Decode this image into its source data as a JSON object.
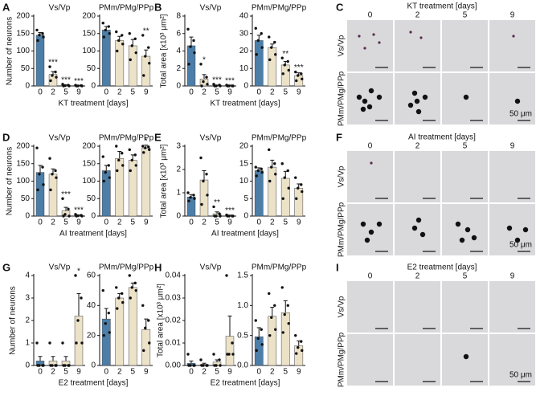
{
  "panel_labels": [
    "A",
    "B",
    "C",
    "D",
    "E",
    "F",
    "G",
    "H",
    "I"
  ],
  "image_panels": [
    {
      "title": "KT treatment [days]",
      "columns": [
        "0",
        "2",
        "5",
        "9"
      ],
      "rows": [
        "Vs/Vp",
        "PMm/PMg/PPp"
      ],
      "scale_bar": "50 μm"
    },
    {
      "title": "AI treatment [days]",
      "columns": [
        "0",
        "2",
        "5",
        "9"
      ],
      "rows": [
        "Vs/Vp",
        "PMm/PMg/PPp"
      ],
      "scale_bar": "50 μm"
    },
    {
      "title": "E2 treatment [days]",
      "columns": [
        "0",
        "2",
        "5",
        "9"
      ],
      "rows": [
        "Vs/Vp",
        "PMm/PMg/PPp"
      ],
      "scale_bar": "50 μm"
    }
  ],
  "chart_data": [
    {
      "type": "bar",
      "title": "Vs/Vp",
      "ylabel": "Number of neurons",
      "xlabel": "KT treatment [days]",
      "categories": [
        "0",
        "2",
        "5",
        "9"
      ],
      "values": [
        145,
        33,
        2,
        1
      ],
      "errors": [
        8,
        8,
        1,
        1
      ],
      "annotations": [
        null,
        "***",
        "***",
        "***"
      ],
      "points": [
        [
          160,
          150,
          146,
          140,
          130
        ],
        [
          55,
          40,
          30,
          25,
          15
        ],
        [
          5,
          2,
          1,
          0,
          0
        ],
        [
          2,
          1,
          0,
          0,
          0
        ]
      ],
      "colors": [
        "#4b7ea9",
        "#ece2c8",
        "#ece2c8",
        "#ece2c8"
      ],
      "ylim": [
        0,
        200
      ],
      "yticks": [
        0,
        50,
        100,
        150,
        200
      ]
    },
    {
      "type": "bar",
      "title": "PMm/PMg/PPp",
      "categories": [
        "0",
        "2",
        "5",
        "9"
      ],
      "values": [
        160,
        130,
        115,
        85
      ],
      "errors": [
        10,
        12,
        18,
        18
      ],
      "annotations": [
        null,
        null,
        null,
        "**"
      ],
      "points": [
        [
          180,
          170,
          160,
          150,
          140
        ],
        [
          155,
          145,
          130,
          120,
          100
        ],
        [
          150,
          135,
          115,
          95,
          75
        ],
        [
          145,
          110,
          85,
          65,
          30
        ]
      ],
      "colors": [
        "#4b7ea9",
        "#ece2c8",
        "#ece2c8",
        "#ece2c8"
      ],
      "ylim": [
        0,
        200
      ],
      "yticks": [
        0,
        50,
        100,
        150,
        200
      ]
    },
    {
      "type": "bar",
      "title": "Vs/Vp",
      "ylabel": "Total area [x10³ μm²]",
      "xlabel": "KT treatment [days]",
      "categories": [
        "0",
        "2",
        "5",
        "9"
      ],
      "values": [
        4.6,
        0.8,
        0.05,
        0.05
      ],
      "errors": [
        1,
        0.5,
        0.05,
        0.05
      ],
      "annotations": [
        null,
        "*",
        "***",
        "***"
      ],
      "points": [
        [
          6.5,
          5.2,
          4.5,
          3.8,
          2.5
        ],
        [
          2.5,
          1,
          0.5,
          0.2,
          0
        ],
        [
          0.2,
          0.1,
          0,
          0,
          0
        ],
        [
          0.1,
          0,
          0,
          0,
          0
        ]
      ],
      "colors": [
        "#4b7ea9",
        "#ece2c8",
        "#ece2c8",
        "#ece2c8"
      ],
      "ylim": [
        0,
        8
      ],
      "yticks": [
        0,
        2,
        4,
        6,
        8
      ]
    },
    {
      "type": "bar",
      "title": "PMm/PMg/PPp",
      "categories": [
        "0",
        "2",
        "5",
        "9"
      ],
      "values": [
        26,
        22,
        12,
        6
      ],
      "errors": [
        3,
        2,
        2,
        1.5
      ],
      "annotations": [
        null,
        null,
        "**",
        "***"
      ],
      "points": [
        [
          33,
          30,
          26,
          22,
          18
        ],
        [
          28,
          25,
          22,
          18,
          15
        ],
        [
          16,
          14,
          12,
          9,
          7
        ],
        [
          8,
          7,
          6,
          4,
          3
        ]
      ],
      "colors": [
        "#4b7ea9",
        "#ece2c8",
        "#ece2c8",
        "#ece2c8"
      ],
      "ylim": [
        0,
        40
      ],
      "yticks": [
        0,
        10,
        20,
        30,
        40
      ]
    },
    {
      "type": "bar",
      "title": "Vs/Vp",
      "ylabel": "Number of neurons",
      "xlabel": "AI treatment [days]",
      "categories": [
        "0",
        "2",
        "5",
        "9"
      ],
      "values": [
        125,
        120,
        15,
        2
      ],
      "errors": [
        20,
        15,
        10,
        1
      ],
      "annotations": [
        null,
        null,
        "***",
        "***"
      ],
      "points": [
        [
          195,
          140,
          120,
          90,
          75
        ],
        [
          165,
          130,
          120,
          110,
          75
        ],
        [
          50,
          20,
          5,
          0,
          0
        ],
        [
          5,
          2,
          1,
          0,
          0
        ]
      ],
      "colors": [
        "#4b7ea9",
        "#ece2c8",
        "#ece2c8",
        "#ece2c8"
      ],
      "ylim": [
        0,
        200
      ],
      "yticks": [
        0,
        50,
        100,
        150,
        200
      ]
    },
    {
      "type": "bar",
      "title": "PMm/PMg/PPp",
      "categories": [
        "0",
        "2",
        "5",
        "9"
      ],
      "values": [
        130,
        165,
        160,
        195
      ],
      "errors": [
        15,
        20,
        15,
        8
      ],
      "annotations": [
        null,
        null,
        null,
        "*"
      ],
      "points": [
        [
          170,
          145,
          125,
          110,
          100
        ],
        [
          200,
          180,
          160,
          145,
          130
        ],
        [
          190,
          175,
          160,
          145,
          130
        ],
        [
          200,
          198,
          195,
          190,
          182
        ]
      ],
      "colors": [
        "#4b7ea9",
        "#ece2c8",
        "#ece2c8",
        "#ece2c8"
      ],
      "ylim": [
        0,
        200
      ],
      "yticks": [
        0,
        50,
        100,
        150,
        200
      ]
    },
    {
      "type": "bar",
      "title": "Vs/Vp",
      "ylabel": "Total area [x10³ μm²]",
      "xlabel": "AI treatment [days]",
      "categories": [
        "0",
        "2",
        "5",
        "9"
      ],
      "values": [
        0.82,
        1.55,
        0.1,
        0.02
      ],
      "errors": [
        0.1,
        0.4,
        0.08,
        0.02
      ],
      "annotations": [
        null,
        null,
        "**",
        "***"
      ],
      "points": [
        [
          1.0,
          0.9,
          0.8,
          0.75,
          0.65
        ],
        [
          2.5,
          1.8,
          1.5,
          0.9,
          0.5
        ],
        [
          0.4,
          0.1,
          0,
          0,
          0
        ],
        [
          0.05,
          0,
          0,
          0,
          0
        ]
      ],
      "colors": [
        "#4b7ea9",
        "#ece2c8",
        "#ece2c8",
        "#ece2c8"
      ],
      "ylim": [
        0,
        3
      ],
      "yticks": [
        0,
        1,
        2,
        3
      ]
    },
    {
      "type": "bar",
      "title": "PMm/PMg/PPp",
      "categories": [
        "0",
        "2",
        "5",
        "9"
      ],
      "values": [
        13,
        14,
        10.8,
        8
      ],
      "errors": [
        0.8,
        2,
        2,
        1.2
      ],
      "annotations": [
        null,
        null,
        null,
        null
      ],
      "points": [
        [
          14,
          13.5,
          13,
          12.5,
          11.5
        ],
        [
          19,
          15,
          14,
          12,
          10
        ],
        [
          15,
          13,
          11,
          8,
          5
        ],
        [
          11,
          9,
          8,
          7,
          5
        ]
      ],
      "colors": [
        "#4b7ea9",
        "#ece2c8",
        "#ece2c8",
        "#ece2c8"
      ],
      "ylim": [
        0,
        20
      ],
      "yticks": [
        0,
        5,
        10,
        15,
        20
      ]
    },
    {
      "type": "bar",
      "title": "Vs/Vp",
      "ylabel": "Number of neurons",
      "xlabel": "E2 treatment [days]",
      "categories": [
        "0",
        "2",
        "5",
        "9"
      ],
      "values": [
        0.2,
        0.2,
        0.2,
        2.2
      ],
      "errors": [
        0.2,
        0.2,
        0.2,
        1
      ],
      "annotations": [
        null,
        null,
        null,
        "*"
      ],
      "points": [
        [
          1,
          0,
          0,
          0,
          0
        ],
        [
          1,
          0,
          0,
          0,
          0
        ],
        [
          1,
          0,
          0,
          0,
          0
        ],
        [
          4,
          3,
          2,
          1,
          1
        ]
      ],
      "colors": [
        "#4b7ea9",
        "#ece2c8",
        "#ece2c8",
        "#ece2c8"
      ],
      "ylim": [
        0,
        4
      ],
      "yticks": [
        0,
        1,
        2,
        3,
        4
      ]
    },
    {
      "type": "bar",
      "title": "PMm/PMg/PPp",
      "categories": [
        "0",
        "2",
        "5",
        "9"
      ],
      "values": [
        31,
        45,
        52,
        24
      ],
      "errors": [
        7,
        3,
        3,
        7
      ],
      "annotations": [
        null,
        null,
        null,
        null
      ],
      "points": [
        [
          50,
          35,
          28,
          22,
          20
        ],
        [
          52,
          48,
          45,
          42,
          38
        ],
        [
          60,
          55,
          52,
          50,
          45
        ],
        [
          40,
          30,
          25,
          15,
          10
        ]
      ],
      "colors": [
        "#4b7ea9",
        "#ece2c8",
        "#ece2c8",
        "#ece2c8"
      ],
      "ylim": [
        0,
        60
      ],
      "yticks": [
        0,
        20,
        40,
        60
      ]
    },
    {
      "type": "bar",
      "title": "Vs/Vp",
      "ylabel": "Total area [x10³ μm²]",
      "xlabel": "E2 treatment [days]",
      "categories": [
        "0",
        "2",
        "5",
        "9"
      ],
      "values": [
        0.001,
        0.0005,
        0.0015,
        0.013
      ],
      "errors": [
        0.001,
        0.0005,
        0.001,
        0.009
      ],
      "annotations": [
        null,
        null,
        null,
        null
      ],
      "points": [
        [
          0.005,
          0,
          0,
          0,
          0
        ],
        [
          0.0025,
          0,
          0,
          0,
          0
        ],
        [
          0.005,
          0.0025,
          0,
          0,
          0
        ],
        [
          0.04,
          0.01,
          0.005,
          0.005,
          0.005
        ]
      ],
      "colors": [
        "#4b7ea9",
        "#ece2c8",
        "#ece2c8",
        "#ece2c8"
      ],
      "ylim": [
        0,
        0.04
      ],
      "yticks": [
        {
          "value": 0,
          "label": "0.00"
        },
        0.01,
        0.02,
        0.03,
        0.04
      ]
    },
    {
      "type": "bar",
      "title": "PMm/PMg/PPp",
      "categories": [
        "0",
        "2",
        "5",
        "9"
      ],
      "values": [
        0.48,
        0.82,
        0.88,
        0.33
      ],
      "errors": [
        0.15,
        0.15,
        0.2,
        0.08
      ],
      "annotations": [
        null,
        null,
        null,
        null
      ],
      "points": [
        [
          0.75,
          0.6,
          0.45,
          0.35,
          0.25
        ],
        [
          1.2,
          1.0,
          0.8,
          0.6,
          0.5
        ],
        [
          1.3,
          1.0,
          0.85,
          0.7,
          0.55
        ],
        [
          0.5,
          0.4,
          0.3,
          0.25,
          0.2
        ]
      ],
      "colors": [
        "#4b7ea9",
        "#ece2c8",
        "#ece2c8",
        "#ece2c8"
      ],
      "ylim": [
        0,
        1.5
      ],
      "yticks": [
        {
          "value": 0,
          "label": "0.0"
        },
        0.5,
        {
          "value": 1,
          "label": "1.0"
        },
        1.5
      ]
    }
  ]
}
